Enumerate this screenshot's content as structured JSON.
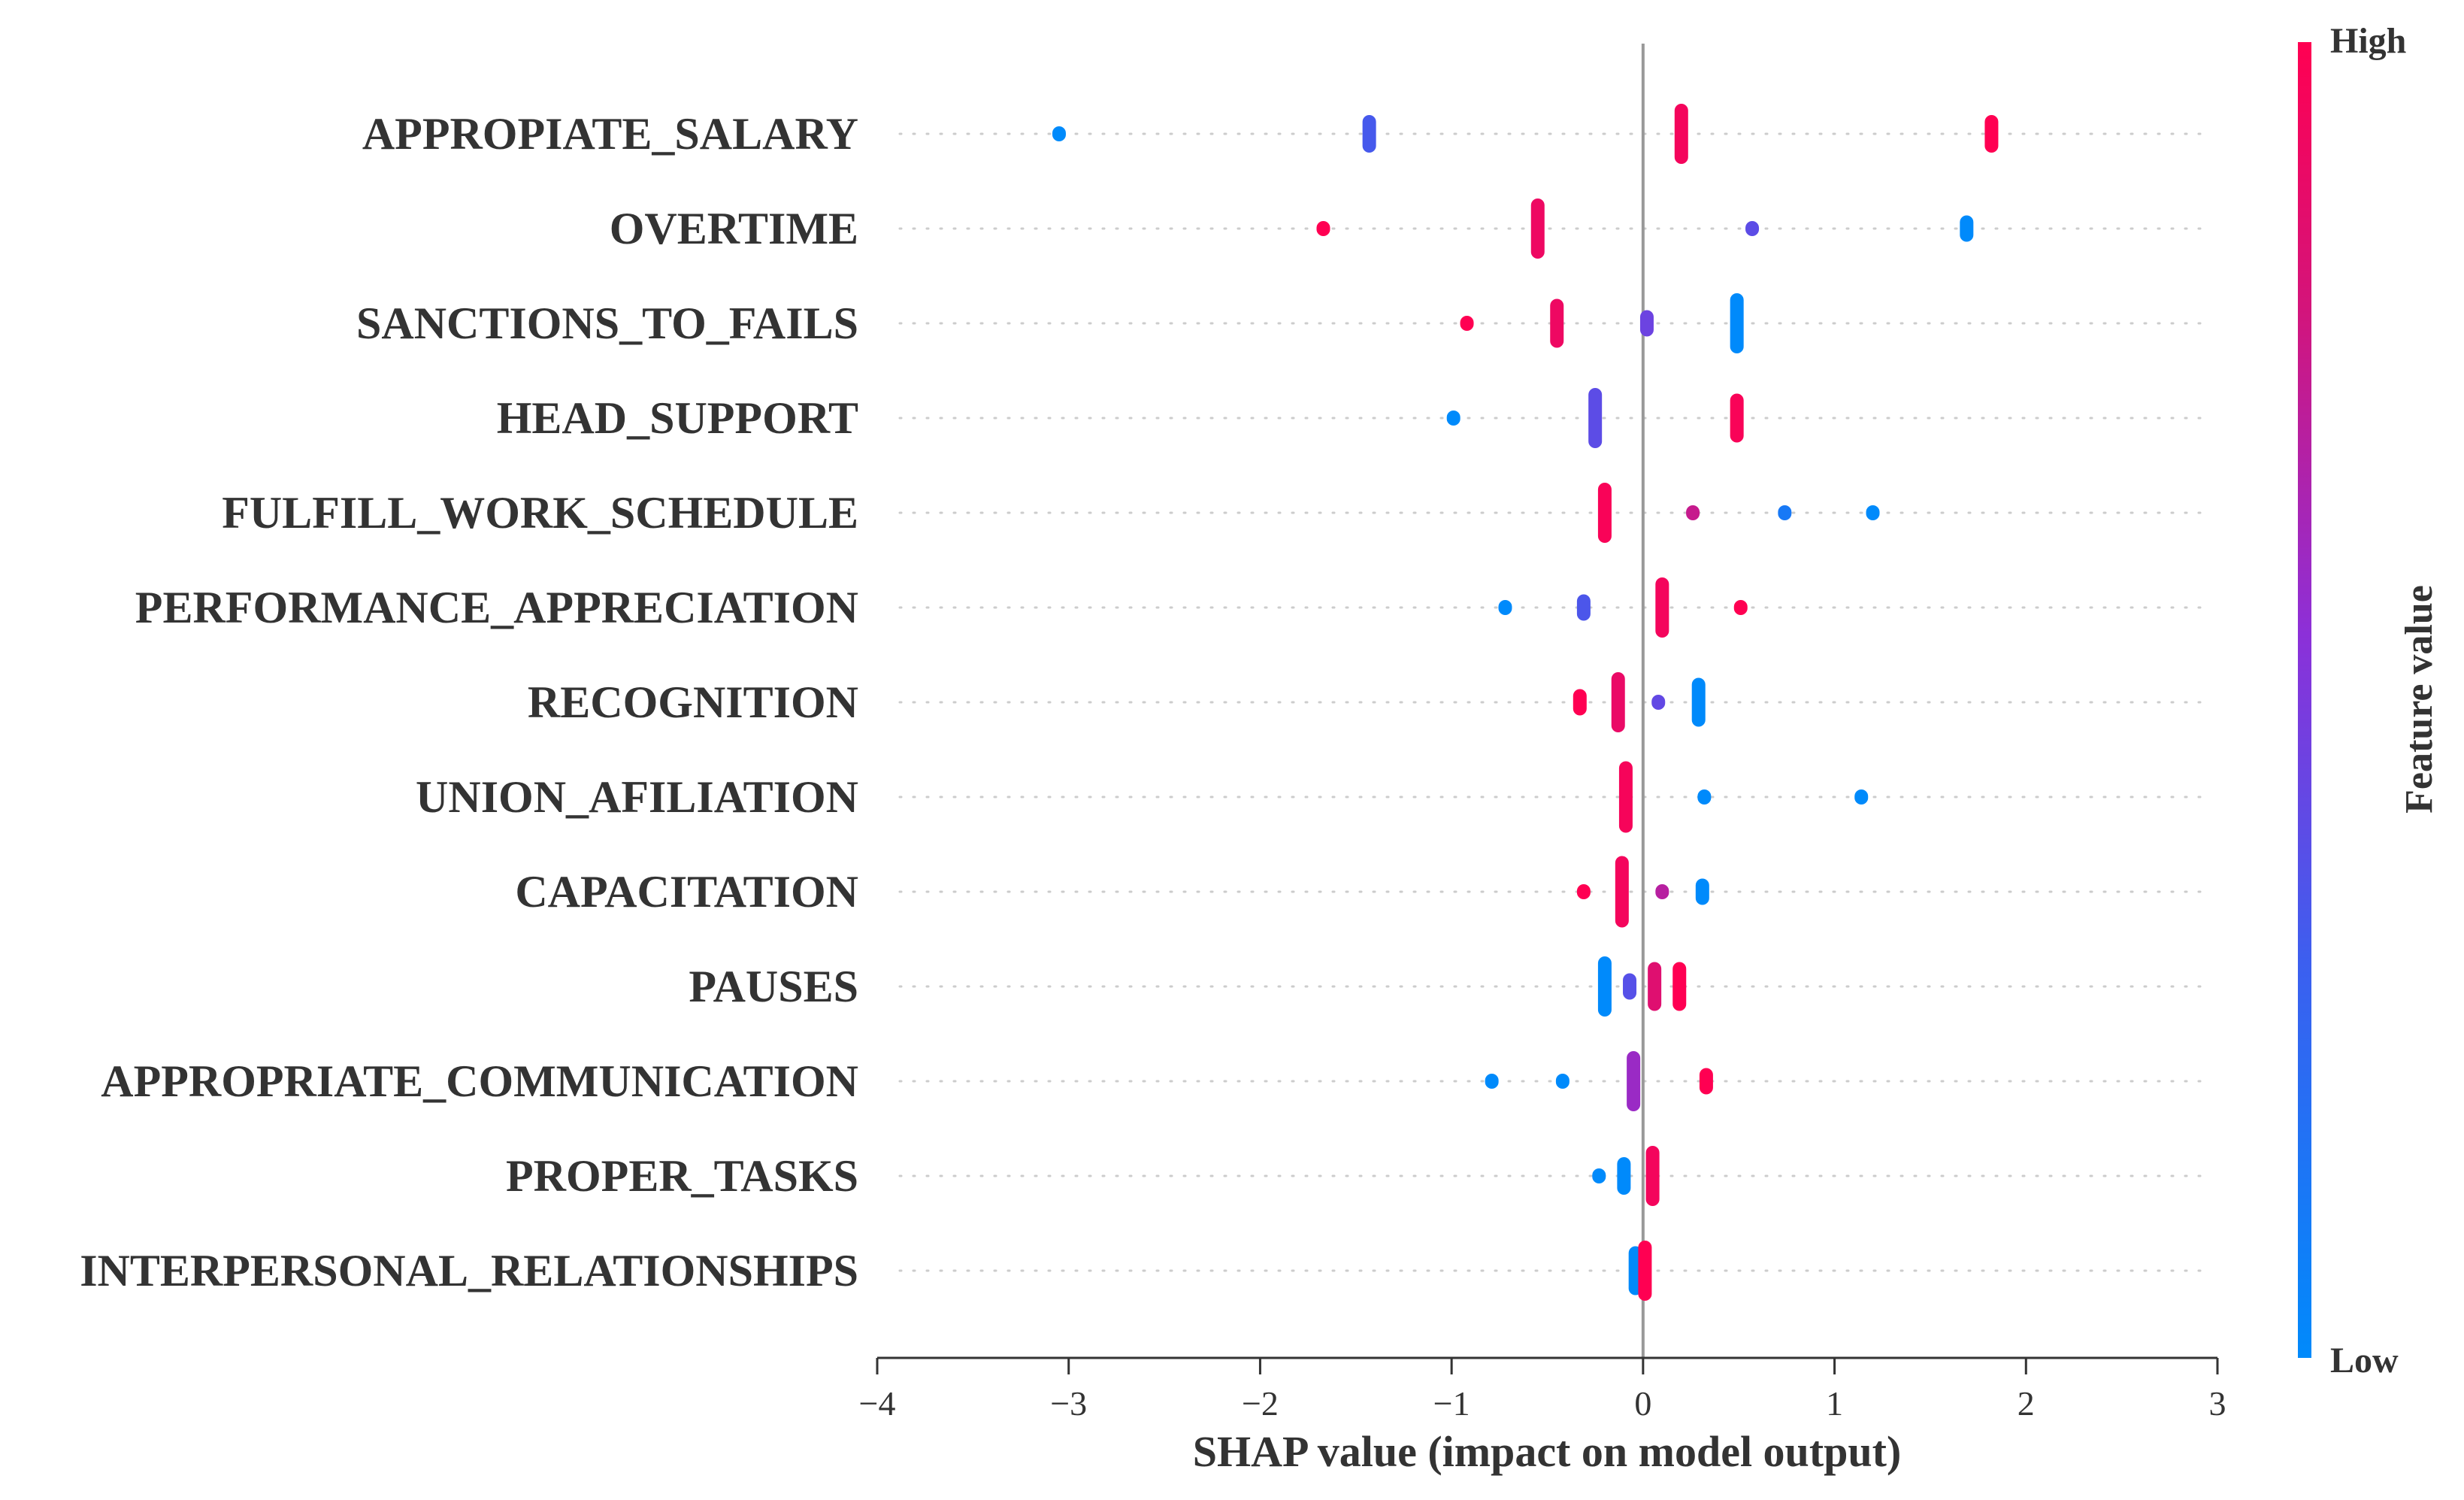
{
  "chart_data": {
    "type": "scatter",
    "subtype": "shap-beeswarm",
    "title": "",
    "xlabel": "SHAP value (impact on model output)",
    "ylabel": "",
    "xlim": [
      -4,
      3
    ],
    "xticks": [
      -4,
      -3,
      -2,
      -1,
      0,
      1,
      2,
      3
    ],
    "xtick_labels": [
      "−4",
      "−3",
      "−2",
      "−1",
      "0",
      "1",
      "2",
      "3"
    ],
    "colorbar": {
      "title": "Feature value",
      "high_label": "High",
      "low_label": "Low",
      "low_color": "#1e88e5",
      "high_color": "#ff0d57"
    },
    "features": [
      {
        "name": "APPROPIATE_SALARY",
        "points": [
          {
            "shap": -3.05,
            "value": 0.0,
            "n": 1
          },
          {
            "shap": -1.43,
            "value": 0.33,
            "n": 3
          },
          {
            "shap": 0.2,
            "value": 0.95,
            "n": 5
          },
          {
            "shap": 1.82,
            "value": 1.0,
            "n": 3
          }
        ]
      },
      {
        "name": "OVERTIME",
        "points": [
          {
            "shap": -1.67,
            "value": 1.0,
            "n": 1
          },
          {
            "shap": -0.55,
            "value": 0.92,
            "n": 5
          },
          {
            "shap": 0.57,
            "value": 0.4,
            "n": 1
          },
          {
            "shap": 1.69,
            "value": 0.0,
            "n": 2
          }
        ]
      },
      {
        "name": "SANCTIONS_TO_FAILS",
        "points": [
          {
            "shap": -0.92,
            "value": 1.0,
            "n": 1
          },
          {
            "shap": -0.45,
            "value": 0.92,
            "n": 4
          },
          {
            "shap": 0.02,
            "value": 0.45,
            "n": 2
          },
          {
            "shap": 0.49,
            "value": 0.0,
            "n": 5
          }
        ]
      },
      {
        "name": "HEAD_SUPPORT",
        "points": [
          {
            "shap": -0.99,
            "value": 0.0,
            "n": 1
          },
          {
            "shap": -0.25,
            "value": 0.4,
            "n": 5
          },
          {
            "shap": 0.49,
            "value": 0.97,
            "n": 4
          }
        ]
      },
      {
        "name": "FULFILL_WORK_SCHEDULE",
        "points": [
          {
            "shap": -0.2,
            "value": 0.97,
            "n": 5
          },
          {
            "shap": 0.26,
            "value": 0.75,
            "n": 1
          },
          {
            "shap": 0.74,
            "value": 0.12,
            "n": 1
          },
          {
            "shap": 1.2,
            "value": 0.0,
            "n": 1
          }
        ]
      },
      {
        "name": "PERFORMANCE_APPRECIATION",
        "points": [
          {
            "shap": -0.72,
            "value": 0.0,
            "n": 1
          },
          {
            "shap": -0.31,
            "value": 0.35,
            "n": 2
          },
          {
            "shap": 0.1,
            "value": 0.95,
            "n": 5
          },
          {
            "shap": 0.51,
            "value": 1.0,
            "n": 1
          }
        ]
      },
      {
        "name": "RECOGNITION",
        "points": [
          {
            "shap": -0.33,
            "value": 1.0,
            "n": 2
          },
          {
            "shap": -0.13,
            "value": 0.9,
            "n": 5
          },
          {
            "shap": 0.08,
            "value": 0.42,
            "n": 1
          },
          {
            "shap": 0.29,
            "value": 0.0,
            "n": 4
          }
        ]
      },
      {
        "name": "UNION_AFILIATION",
        "points": [
          {
            "shap": -0.09,
            "value": 0.96,
            "n": 6
          },
          {
            "shap": 0.32,
            "value": 0.0,
            "n": 1
          },
          {
            "shap": 1.14,
            "value": 0.0,
            "n": 1
          }
        ]
      },
      {
        "name": "CAPACITATION",
        "points": [
          {
            "shap": -0.31,
            "value": 1.0,
            "n": 1
          },
          {
            "shap": -0.11,
            "value": 0.95,
            "n": 6
          },
          {
            "shap": 0.1,
            "value": 0.7,
            "n": 1
          },
          {
            "shap": 0.31,
            "value": 0.0,
            "n": 2
          }
        ]
      },
      {
        "name": "PAUSES",
        "points": [
          {
            "shap": -0.2,
            "value": 0.0,
            "n": 5
          },
          {
            "shap": -0.07,
            "value": 0.38,
            "n": 2
          },
          {
            "shap": 0.06,
            "value": 0.85,
            "n": 4
          },
          {
            "shap": 0.19,
            "value": 1.0,
            "n": 4
          }
        ]
      },
      {
        "name": "APPROPRIATE_COMMUNICATION",
        "points": [
          {
            "shap": -0.79,
            "value": 0.0,
            "n": 1
          },
          {
            "shap": -0.42,
            "value": 0.0,
            "n": 1
          },
          {
            "shap": -0.05,
            "value": 0.6,
            "n": 5
          },
          {
            "shap": 0.33,
            "value": 1.0,
            "n": 2
          }
        ]
      },
      {
        "name": "PROPER_TASKS",
        "points": [
          {
            "shap": -0.23,
            "value": 0.0,
            "n": 1
          },
          {
            "shap": -0.1,
            "value": 0.0,
            "n": 3
          },
          {
            "shap": 0.05,
            "value": 0.95,
            "n": 5
          }
        ]
      },
      {
        "name": "INTERPERSONAL_RELATIONSHIPS",
        "points": [
          {
            "shap": -0.04,
            "value": 0.0,
            "n": 4
          },
          {
            "shap": 0.01,
            "value": 1.0,
            "n": 5
          }
        ]
      }
    ]
  }
}
